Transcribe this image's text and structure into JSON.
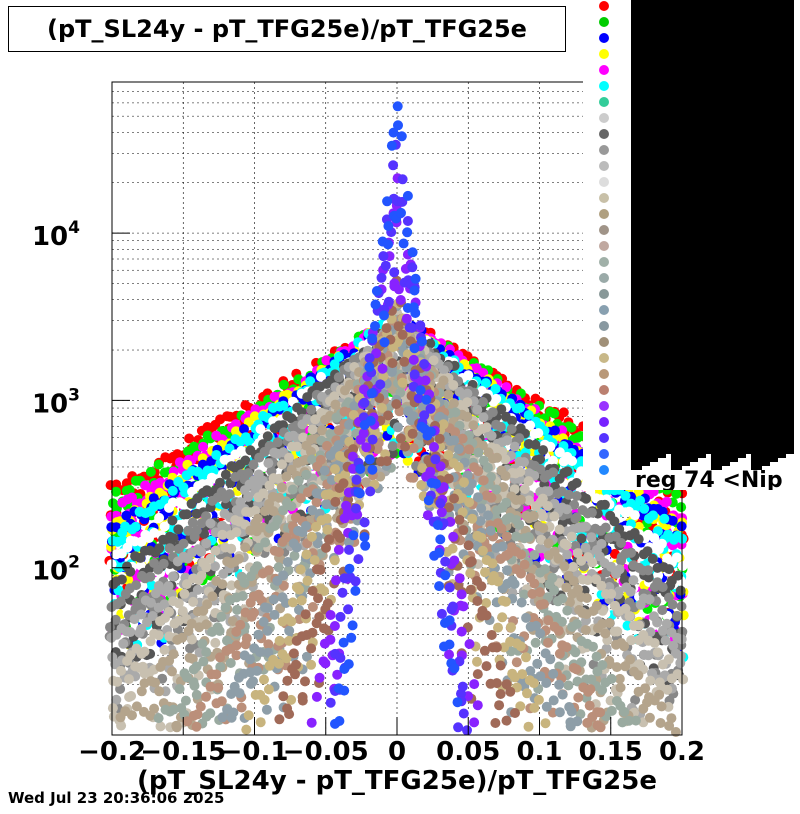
{
  "chart_data": {
    "type": "scatter",
    "title": "(pT_SL24y - pT_TFG25e)/pT_TFG25e",
    "xlabel": "(pT_SL24y - pT_TFG25e)/pT_TFG25e",
    "ylabel": "",
    "xlim": [
      -0.2,
      0.2
    ],
    "ylim": [
      10,
      80000
    ],
    "y_scale": "log",
    "grid": true,
    "legend_placement": "top-right",
    "x_ticks": [
      "−0.2",
      "−0.15",
      "−0.1",
      "−0.05",
      "0",
      "0.05",
      "0.1",
      "0.15",
      "0.2"
    ],
    "x_tick_values": [
      -0.2,
      -0.15,
      -0.1,
      -0.05,
      0,
      0.05,
      0.1,
      0.15,
      0.2
    ],
    "y_ticks": [
      {
        "value": 100,
        "base": "10",
        "exp": "2"
      },
      {
        "value": 1000,
        "base": "10",
        "exp": "3"
      },
      {
        "value": 10000,
        "base": "10",
        "exp": "4"
      }
    ],
    "legend_visible_text": "reg 74 <Nip",
    "series": [
      {
        "color": "#ff0000",
        "peak": 3000,
        "width": 0.085
      },
      {
        "color": "#00ee00",
        "peak": 3000,
        "width": 0.08
      },
      {
        "color": "#ff00ff",
        "peak": 3000,
        "width": 0.075
      },
      {
        "color": "#ffff00",
        "peak": 3000,
        "width": 0.07
      },
      {
        "color": "#0000ff",
        "peak": 3000,
        "width": 0.068
      },
      {
        "color": "#00ffff",
        "peak": 3000,
        "width": 0.066
      },
      {
        "color": "#ffffff",
        "peak": 3000,
        "width": 0.06
      },
      {
        "color": "#555555",
        "peak": 3000,
        "width": 0.055
      },
      {
        "color": "#888888",
        "peak": 3000,
        "width": 0.05
      },
      {
        "color": "#aaaaaa",
        "peak": 3000,
        "width": 0.045
      },
      {
        "color": "#c8c0b0",
        "peak": 3000,
        "width": 0.04
      },
      {
        "color": "#b4a48c",
        "peak": 3000,
        "width": 0.035
      },
      {
        "color": "#9aaaa0",
        "peak": 3000,
        "width": 0.03
      },
      {
        "color": "#bb8f7a",
        "peak": 3200,
        "width": 0.026
      },
      {
        "color": "#8e9ea8",
        "peak": 3500,
        "width": 0.022
      },
      {
        "color": "#c8b47e",
        "peak": 4000,
        "width": 0.018
      },
      {
        "color": "#a06a58",
        "peak": 5000,
        "width": 0.014
      },
      {
        "color": "#8822ff",
        "peak": 20000,
        "width": 0.008
      },
      {
        "color": "#5533ff",
        "peak": 40000,
        "width": 0.006
      },
      {
        "color": "#2255ff",
        "peak": 70000,
        "width": 0.005
      }
    ],
    "legend_marker_colors": [
      "#ff0000",
      "#00cc00",
      "#0000ff",
      "#ffff00",
      "#ff00ff",
      "#00ffff",
      "#33cc99",
      "#cccccc",
      "#666666",
      "#999999",
      "#bbbbbb",
      "#dddddd",
      "#c8c0a8",
      "#b0a080",
      "#a09488",
      "#c0a8a0",
      "#a0b0a8",
      "#9aaaa8",
      "#889898",
      "#88a0b0",
      "#8898a0",
      "#a09078",
      "#c8b888",
      "#b89878",
      "#bb8070",
      "#9933ff",
      "#7722ff",
      "#5533ff",
      "#3366ff",
      "#2288ff"
    ]
  },
  "timestamp": "Wed Jul 23 20:36:06 2025"
}
